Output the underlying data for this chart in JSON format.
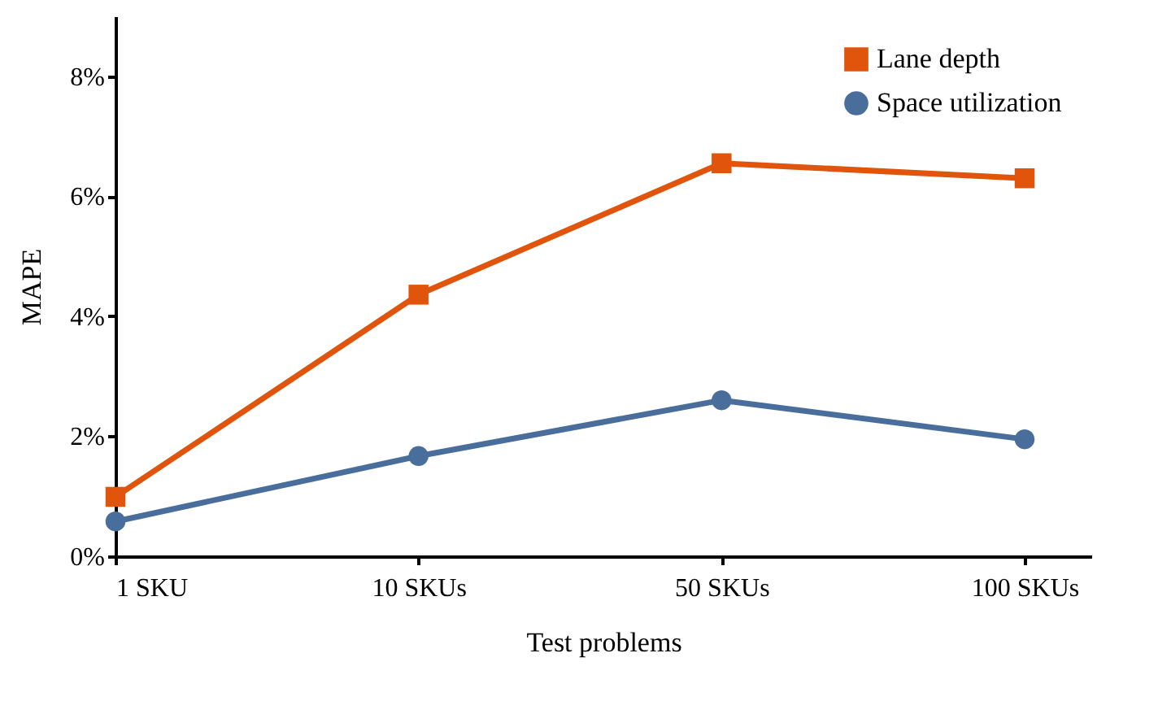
{
  "chart_data": {
    "type": "line",
    "xlabel": "Test problems",
    "ylabel": "MAPE",
    "categories": [
      "1 SKU",
      "10 SKUs",
      "50 SKUs",
      "100 SKUs"
    ],
    "series": [
      {
        "name": "Lane depth",
        "color": "#e0540c",
        "marker": "square",
        "values": [
          0.99,
          4.36,
          6.55,
          6.3
        ]
      },
      {
        "name": "Space utilization",
        "color": "#4a6e9c",
        "marker": "circle",
        "values": [
          0.58,
          1.67,
          2.6,
          1.95
        ]
      }
    ],
    "ylim": [
      0,
      9
    ],
    "yticks": [
      {
        "value": 0,
        "label": "0%"
      },
      {
        "value": 2,
        "label": "2%"
      },
      {
        "value": 4,
        "label": "4%"
      },
      {
        "value": 6,
        "label": "6%"
      },
      {
        "value": 8,
        "label": "8%"
      }
    ],
    "grid": false,
    "legend": "top right",
    "line_style": "solid"
  }
}
